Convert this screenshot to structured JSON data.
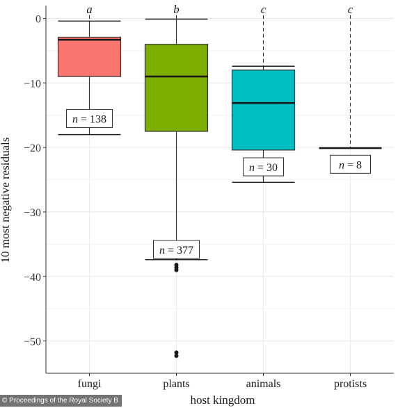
{
  "chart_data": {
    "type": "box",
    "title": "",
    "xlabel": "host kingdom",
    "ylabel": "10 most negative residuals",
    "ylim": [
      -55,
      2
    ],
    "yticks": [
      0,
      -10,
      -20,
      -30,
      -40,
      -50
    ],
    "ytick_labels": [
      "0",
      "−10",
      "−20",
      "−30",
      "−40",
      "−50"
    ],
    "grid": true,
    "legend": "none",
    "categories": [
      "fungi",
      "plants",
      "animals",
      "protists"
    ],
    "boxes": [
      {
        "category": "fungi",
        "q1": -9,
        "median": -3.3,
        "q3": -2.9,
        "whisker_low": -18,
        "whisker_high": -0.4,
        "outliers": [],
        "n": 138,
        "n_label": "= 138",
        "letter": "a",
        "color": "#F8766D"
      },
      {
        "category": "plants",
        "q1": -17.5,
        "median": -9,
        "q3": -4,
        "whisker_low": -37.4,
        "whisker_high": -0.1,
        "outliers": [
          -38.2,
          -38.6,
          -39,
          -51.8,
          -52.3
        ],
        "n": 377,
        "n_label": "= 377",
        "letter": "b",
        "color": "#7CAE00"
      },
      {
        "category": "animals",
        "q1": -20.4,
        "median": -13.1,
        "q3": -8,
        "whisker_low": -25.4,
        "whisker_high": -7.4,
        "outliers": [],
        "n": 30,
        "n_label": "= 30",
        "letter": "c",
        "color": "#00BFC4"
      },
      {
        "category": "protists",
        "q1": -20.1,
        "median": -20.1,
        "q3": -20.1,
        "whisker_low": -20.1,
        "whisker_high": -20.1,
        "outliers": [],
        "n": 8,
        "n_label": "= 8",
        "letter": "c",
        "color": "#C77CFF"
      }
    ]
  },
  "credit": "© Proceedings of the Royal Society B"
}
